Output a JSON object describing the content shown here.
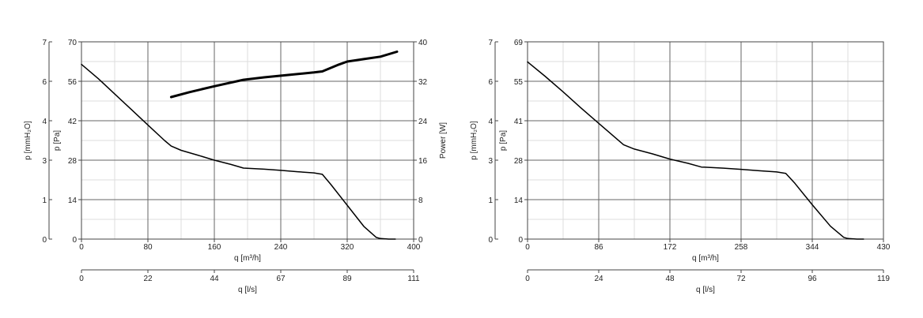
{
  "chart_data": [
    {
      "type": "line",
      "grid": true,
      "xlabel": "q [m³/h]",
      "x2label": "q [l/s]",
      "ylabel": "p [Pa]",
      "y_alt_label": "p [mmH₂O]",
      "y2label": "Power [W]",
      "x_ticks": [
        "0",
        "80",
        "160",
        "240",
        "320",
        "400"
      ],
      "x2_ticks": [
        "0",
        "22",
        "44",
        "67",
        "89",
        "111"
      ],
      "y_ticks": [
        "0",
        "14",
        "28",
        "42",
        "56",
        "70"
      ],
      "y_alt_ticks": [
        "0",
        "1",
        "3",
        "4",
        "6",
        "7"
      ],
      "y2_ticks": [
        "0",
        "8",
        "16",
        "24",
        "32",
        "40"
      ],
      "xlim": [
        0,
        400
      ],
      "ylim": [
        0,
        70
      ],
      "y2lim": [
        0,
        40
      ],
      "series": [
        {
          "axis": "y",
          "x": [
            0,
            20,
            40,
            60,
            80,
            100,
            108,
            120,
            140,
            160,
            180,
            195,
            220,
            240,
            260,
            280,
            290,
            300,
            320,
            340,
            355,
            360,
            370,
            378
          ],
          "y": [
            62,
            57,
            51.5,
            46,
            40.5,
            35,
            33,
            31.5,
            29.8,
            28,
            26.5,
            25.2,
            24.8,
            24.4,
            23.9,
            23.5,
            23,
            19.5,
            12,
            4.5,
            0.6,
            0.2,
            0,
            0
          ]
        },
        {
          "axis": "y2",
          "x": [
            108,
            130,
            160,
            195,
            220,
            250,
            280,
            290,
            310,
            320,
            340,
            360,
            380
          ],
          "y": [
            28.8,
            29.8,
            31,
            32.3,
            32.8,
            33.3,
            33.8,
            34,
            35.4,
            36,
            36.5,
            37,
            38
          ]
        }
      ]
    },
    {
      "type": "line",
      "grid": true,
      "xlabel": "q [m³/h]",
      "x2label": "q [l/s]",
      "ylabel": "p [Pa]",
      "y_alt_label": "p [mmH₂O]",
      "x_ticks": [
        "0",
        "86",
        "172",
        "258",
        "344",
        "430"
      ],
      "x2_ticks": [
        "0",
        "24",
        "48",
        "72",
        "96",
        "119"
      ],
      "y_ticks": [
        "0",
        "14",
        "28",
        "41",
        "55",
        "69"
      ],
      "y_alt_ticks": [
        "0",
        "1",
        "3",
        "4",
        "6",
        "7"
      ],
      "xlim": [
        0,
        430
      ],
      "ylim": [
        0,
        69
      ],
      "series": [
        {
          "axis": "y",
          "x": [
            0,
            21,
            43,
            64,
            86,
            108,
            116,
            129,
            151,
            172,
            194,
            210,
            237,
            258,
            280,
            301,
            312,
            323,
            344,
            366,
            382,
            387,
            398,
            406
          ],
          "y": [
            62,
            57,
            51.5,
            46,
            40.5,
            35,
            33,
            31.5,
            29.8,
            28,
            26.5,
            25.2,
            24.8,
            24.4,
            23.9,
            23.5,
            23,
            19.5,
            12,
            4.5,
            0.6,
            0.2,
            0,
            0
          ]
        }
      ]
    }
  ]
}
